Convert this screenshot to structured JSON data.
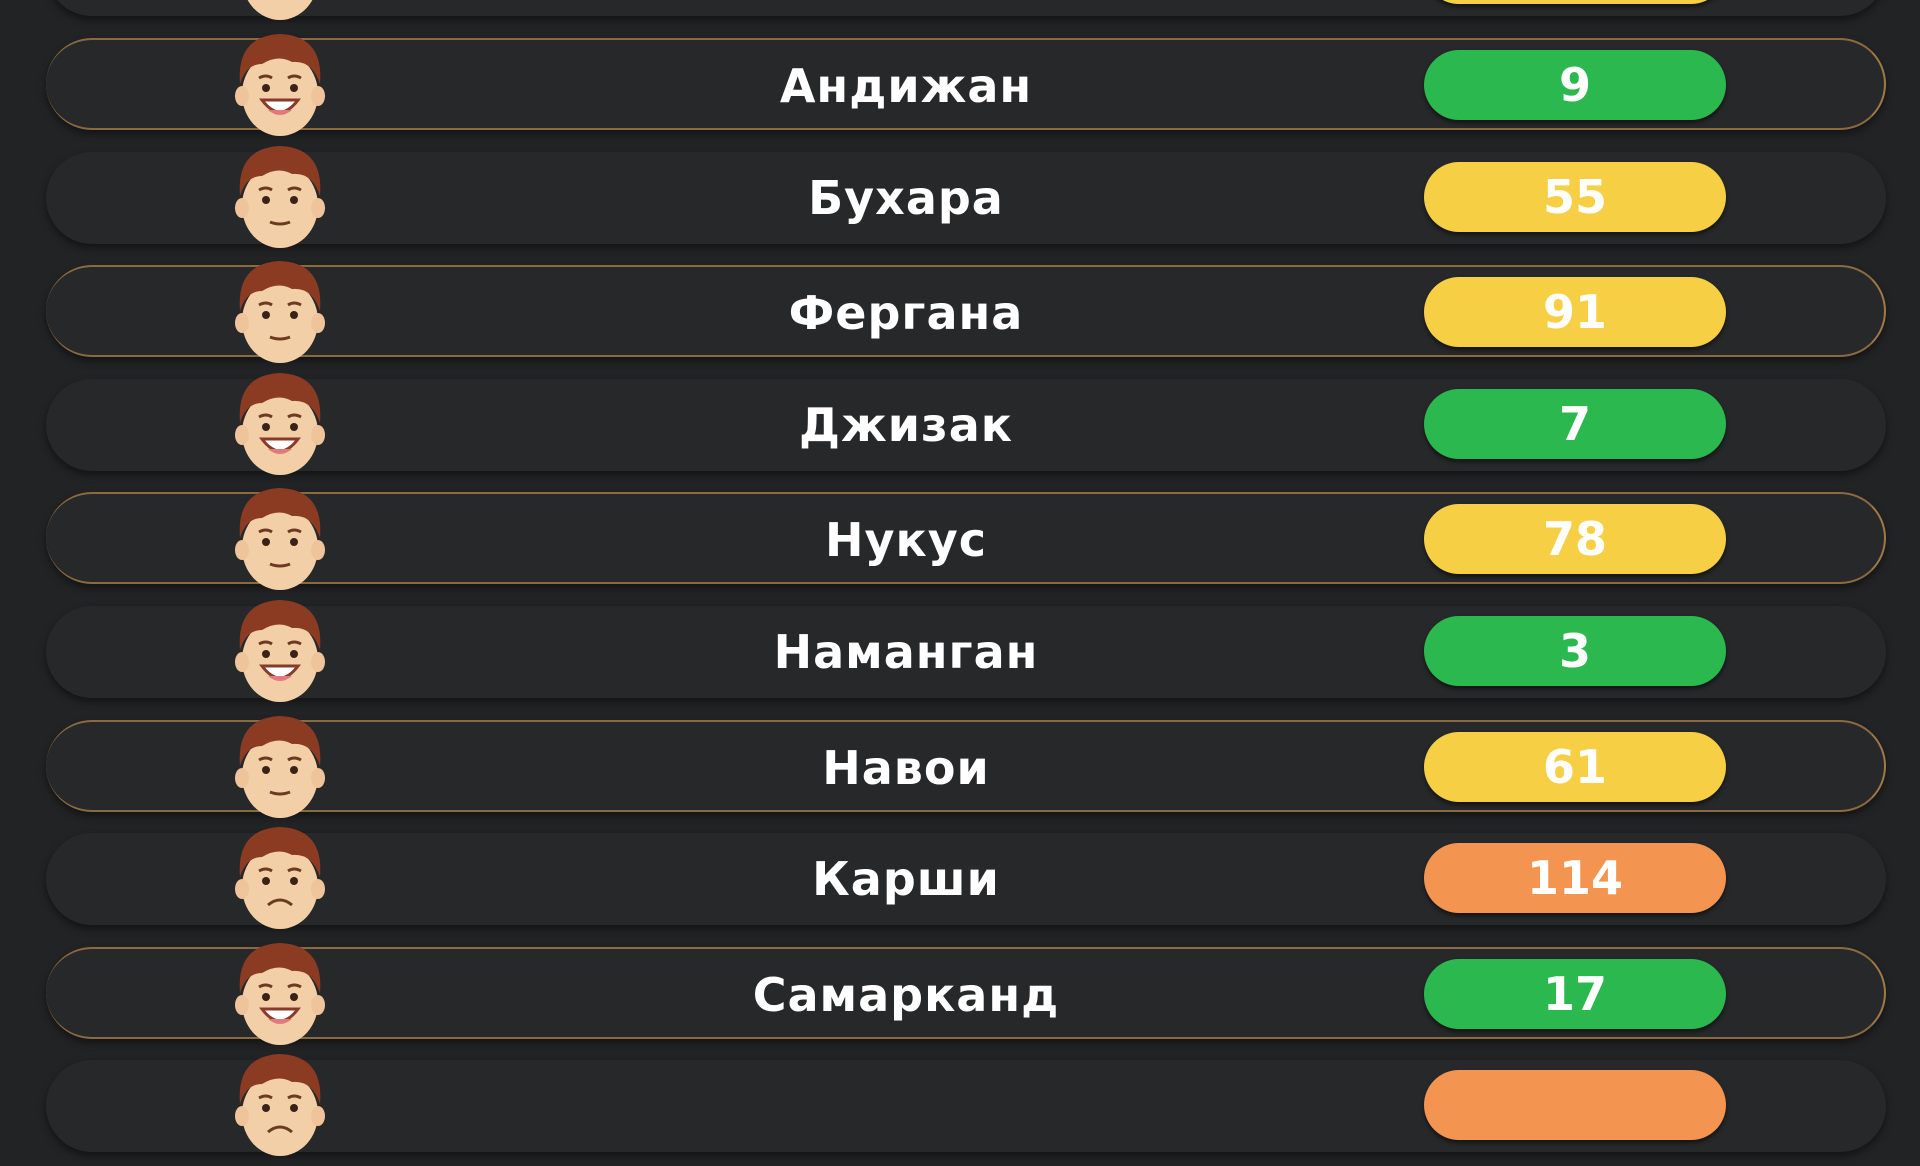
{
  "colors": {
    "good": "#2bb84f",
    "moderate": "#f6cf45",
    "poor": "#f39550",
    "background": "#222325",
    "row_border": "#8c6a40"
  },
  "rows": [
    {
      "name": "",
      "value": "",
      "status": "moderate",
      "face": "neutral"
    },
    {
      "name": "Андижан",
      "value": "9",
      "status": "good",
      "face": "happy"
    },
    {
      "name": "Бухара",
      "value": "55",
      "status": "moderate",
      "face": "neutral"
    },
    {
      "name": "Фергана",
      "value": "91",
      "status": "moderate",
      "face": "neutral"
    },
    {
      "name": "Джизак",
      "value": "7",
      "status": "good",
      "face": "happy"
    },
    {
      "name": "Нукус",
      "value": "78",
      "status": "moderate",
      "face": "neutral"
    },
    {
      "name": "Наманган",
      "value": "3",
      "status": "good",
      "face": "happy"
    },
    {
      "name": "Навои",
      "value": "61",
      "status": "moderate",
      "face": "neutral"
    },
    {
      "name": "Карши",
      "value": "114",
      "status": "poor",
      "face": "sad"
    },
    {
      "name": "Самарканд",
      "value": "17",
      "status": "good",
      "face": "happy"
    },
    {
      "name": "",
      "value": "",
      "status": "poor",
      "face": "sad"
    }
  ]
}
